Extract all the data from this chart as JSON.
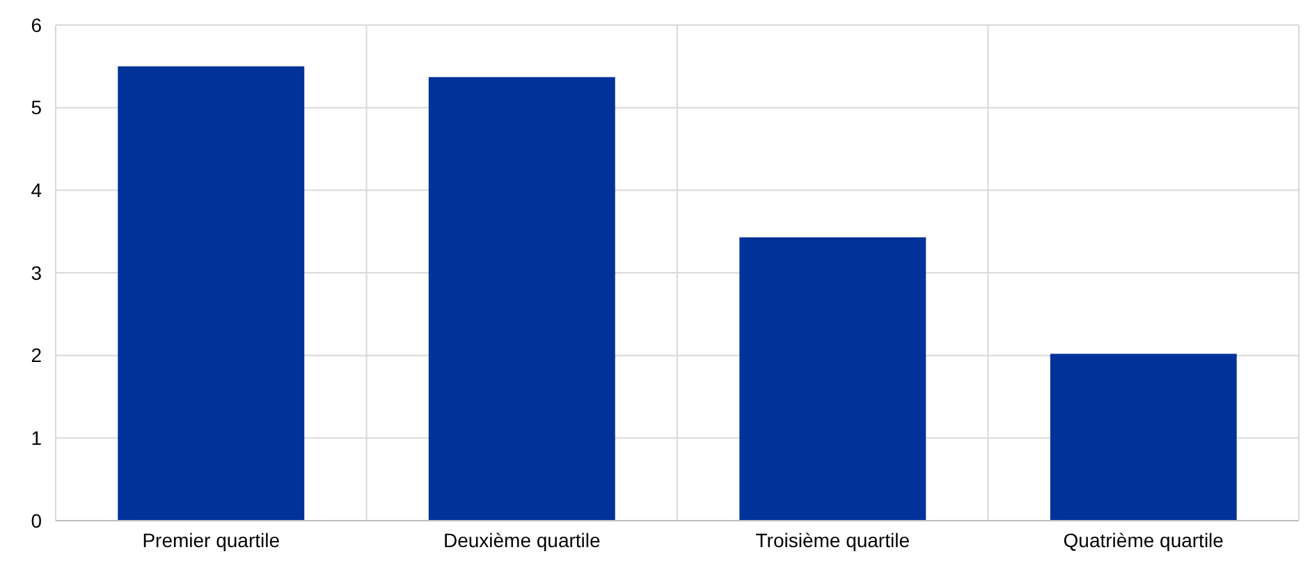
{
  "chart_data": {
    "type": "bar",
    "categories": [
      "Premier quartile",
      "Deuxième quartile",
      "Troisième quartile",
      "Quatrième quartile"
    ],
    "values": [
      5.5,
      5.37,
      3.43,
      2.02
    ],
    "color": "#003299",
    "ylim": [
      0,
      6
    ],
    "yticks": [
      0,
      1,
      2,
      3,
      4,
      5,
      6
    ],
    "grid": true
  }
}
